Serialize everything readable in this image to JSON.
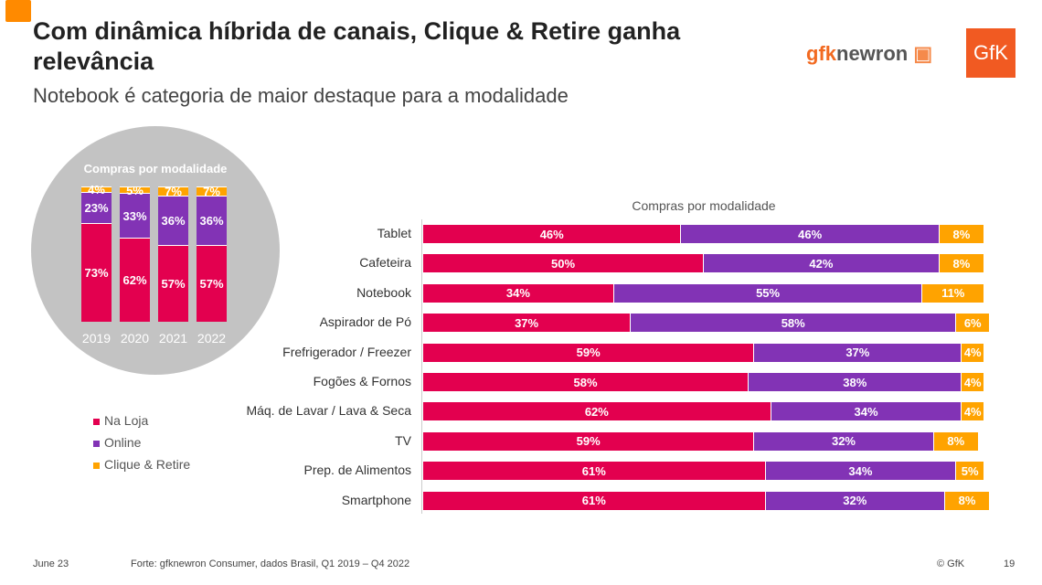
{
  "header": {
    "title": "Com dinâmica híbrida de canais, Clique & Retire ganha relevância",
    "subtitle": "Notebook é categoria de maior destaque para a modalidade",
    "logo_gfknewron": "gfknewron",
    "logo_gfk": "GfK"
  },
  "colors": {
    "Na Loja": "#e3004f",
    "Online": "#8233b5",
    "Clique & Retire": "#ffa300"
  },
  "legend": [
    "Na Loja",
    "Online",
    "Clique & Retire"
  ],
  "footer": {
    "date": "June 23",
    "source": "Forte: gfknewron Consumer, dados Brasil, Q1 2019 – Q4 2022",
    "copyright": "© GfK",
    "page": "19"
  },
  "chart_data": [
    {
      "type": "bar",
      "stacked": true,
      "orientation": "vertical",
      "title": "Compras por modalidade",
      "categories": [
        "2019",
        "2020",
        "2021",
        "2022"
      ],
      "series": [
        {
          "name": "Na Loja",
          "values": [
            73,
            62,
            57,
            57
          ]
        },
        {
          "name": "Online",
          "values": [
            23,
            33,
            36,
            36
          ]
        },
        {
          "name": "Clique & Retire",
          "values": [
            4,
            5,
            7,
            7
          ]
        }
      ],
      "unit": "%"
    },
    {
      "type": "bar",
      "stacked": true,
      "orientation": "horizontal",
      "title": "Compras por modalidade",
      "categories": [
        "Tablet",
        "Cafeteira",
        "Notebook",
        "Aspirador de Pó",
        "Frefrigerador / Freezer",
        "Fogões & Fornos",
        "Máq. de Lavar / Lava & Seca",
        "TV",
        "Prep. de Alimentos",
        "Smartphone"
      ],
      "series": [
        {
          "name": "Na Loja",
          "values": [
            46,
            50,
            34,
            37,
            59,
            58,
            62,
            59,
            61,
            61
          ]
        },
        {
          "name": "Online",
          "values": [
            46,
            42,
            55,
            58,
            37,
            38,
            34,
            32,
            34,
            32
          ]
        },
        {
          "name": "Clique & Retire",
          "values": [
            8,
            8,
            11,
            6,
            4,
            4,
            4,
            8,
            5,
            8
          ]
        }
      ],
      "unit": "%"
    }
  ]
}
